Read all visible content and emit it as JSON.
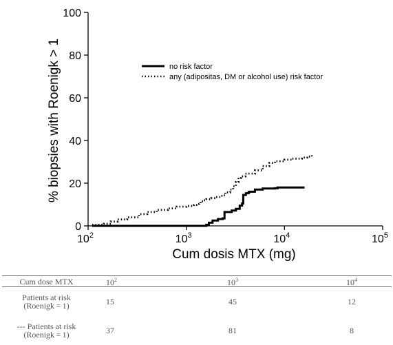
{
  "chart_data": {
    "type": "line",
    "title": "",
    "xlabel": "Cum dosis MTX (mg)",
    "ylabel": "% biopsies with Roenigk > 1",
    "x_scale": "log",
    "xlim": [
      100,
      100000
    ],
    "ylim": [
      0,
      100
    ],
    "x_ticks": [
      {
        "base": "10",
        "exp": "2",
        "value": 100
      },
      {
        "base": "10",
        "exp": "3",
        "value": 1000
      },
      {
        "base": "10",
        "exp": "4",
        "value": 10000
      },
      {
        "base": "10",
        "exp": "5",
        "value": 100000
      }
    ],
    "y_ticks": [
      "0",
      "20",
      "40",
      "60",
      "80",
      "100"
    ],
    "legend_position": "upper-center",
    "series": [
      {
        "name": "no risk factor",
        "style": "solid",
        "color": "#000000",
        "points": [
          [
            110,
            0
          ],
          [
            500,
            0
          ],
          [
            1000,
            0
          ],
          [
            1500,
            0
          ],
          [
            1600,
            0.5
          ],
          [
            1700,
            1.5
          ],
          [
            1850,
            2.5
          ],
          [
            2100,
            3.2
          ],
          [
            2350,
            3.5
          ],
          [
            2450,
            6.5
          ],
          [
            2900,
            7.2
          ],
          [
            3200,
            8
          ],
          [
            3500,
            9.5
          ],
          [
            3700,
            10.5
          ],
          [
            3800,
            14.5
          ],
          [
            4050,
            15.3
          ],
          [
            4300,
            15.5
          ],
          [
            4350,
            16
          ],
          [
            5000,
            17
          ],
          [
            6000,
            17.5
          ],
          [
            7000,
            17.5
          ],
          [
            8000,
            17.6
          ],
          [
            8500,
            18
          ],
          [
            10000,
            18
          ],
          [
            16000,
            18
          ]
        ]
      },
      {
        "name": "any (adipositas, DM or alcohol use) risk factor",
        "style": "dotted",
        "color": "#000000",
        "points": [
          [
            110,
            0.5
          ],
          [
            130,
            0.5
          ],
          [
            145,
            1
          ],
          [
            170,
            2
          ],
          [
            200,
            3
          ],
          [
            250,
            4
          ],
          [
            330,
            5.5
          ],
          [
            400,
            6.5
          ],
          [
            500,
            7.5
          ],
          [
            650,
            8.2
          ],
          [
            800,
            9
          ],
          [
            1000,
            9.3
          ],
          [
            1200,
            9.8
          ],
          [
            1350,
            10.3
          ],
          [
            1400,
            11.5
          ],
          [
            1500,
            12
          ],
          [
            1600,
            12.5
          ],
          [
            1800,
            13
          ],
          [
            2000,
            13.5
          ],
          [
            2300,
            14.3
          ],
          [
            2500,
            15.7
          ],
          [
            2800,
            17
          ],
          [
            3000,
            18.5
          ],
          [
            3200,
            20.5
          ],
          [
            3400,
            22.5
          ],
          [
            3600,
            23.2
          ],
          [
            4000,
            24.5
          ],
          [
            5000,
            26
          ],
          [
            6000,
            28
          ],
          [
            7000,
            29.5
          ],
          [
            8000,
            30.3
          ],
          [
            10000,
            31
          ],
          [
            12000,
            31.5
          ],
          [
            15000,
            32
          ],
          [
            17000,
            32.5
          ],
          [
            19000,
            33.5
          ]
        ]
      }
    ]
  },
  "table": {
    "header": {
      "label": "Cum dose MTX",
      "cols": [
        {
          "base": "10",
          "exp": "2"
        },
        {
          "base": "10",
          "exp": "3"
        },
        {
          "base": "10",
          "exp": "4"
        }
      ]
    },
    "rows": [
      {
        "label_line1": "Patients at risk",
        "label_line2": "(Roenigk = 1)",
        "values": [
          "15",
          "45",
          "12"
        ]
      },
      {
        "label_line1": "--- Patients at risk",
        "label_line2": "(Roenigk = 1)",
        "values": [
          "37",
          "81",
          "8"
        ]
      }
    ]
  }
}
